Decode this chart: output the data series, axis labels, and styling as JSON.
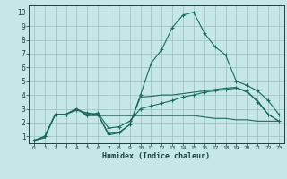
{
  "title": "",
  "xlabel": "Humidex (Indice chaleur)",
  "ylabel": "",
  "bg_color": "#c5e8e4",
  "grid_color": "#9dbfbb",
  "line_color": "#1a6b5a",
  "xlim": [
    -0.5,
    23.5
  ],
  "ylim": [
    0.5,
    10.5
  ],
  "xticks": [
    0,
    1,
    2,
    3,
    4,
    5,
    6,
    7,
    8,
    9,
    10,
    11,
    12,
    13,
    14,
    15,
    16,
    17,
    18,
    19,
    20,
    21,
    22,
    23
  ],
  "yticks": [
    1,
    2,
    3,
    4,
    5,
    6,
    7,
    8,
    9,
    10
  ],
  "line1_x": [
    0,
    1,
    2,
    3,
    4,
    5,
    6,
    7,
    8,
    9,
    10,
    11,
    12,
    13,
    14,
    15,
    16,
    17,
    18,
    19,
    20,
    21,
    22,
    23
  ],
  "line1_y": [
    0.7,
    1.0,
    2.6,
    2.6,
    2.9,
    2.7,
    2.6,
    1.2,
    1.3,
    1.85,
    4.0,
    6.3,
    7.3,
    8.9,
    9.8,
    10.0,
    8.5,
    7.5,
    6.9,
    5.0,
    4.7,
    4.3,
    3.6,
    2.6
  ],
  "line2_x": [
    0,
    1,
    2,
    3,
    4,
    5,
    6,
    7,
    8,
    9,
    10,
    11,
    12,
    13,
    14,
    15,
    16,
    17,
    18,
    19,
    20,
    21,
    22,
    23
  ],
  "line2_y": [
    0.7,
    1.0,
    2.6,
    2.6,
    3.0,
    2.5,
    2.7,
    1.6,
    1.7,
    2.1,
    3.0,
    3.2,
    3.4,
    3.6,
    3.85,
    4.0,
    4.2,
    4.3,
    4.4,
    4.5,
    4.3,
    3.5,
    2.6,
    2.1
  ],
  "line3_x": [
    0,
    1,
    2,
    3,
    4,
    5,
    6,
    7,
    8,
    9,
    10,
    11,
    12,
    13,
    14,
    15,
    16,
    17,
    18,
    19,
    20,
    21,
    22,
    23
  ],
  "line3_y": [
    0.7,
    0.9,
    2.6,
    2.6,
    3.0,
    2.5,
    2.5,
    2.5,
    2.5,
    2.5,
    2.5,
    2.5,
    2.5,
    2.5,
    2.5,
    2.5,
    2.4,
    2.3,
    2.3,
    2.2,
    2.2,
    2.1,
    2.1,
    2.1
  ],
  "line4_x": [
    0,
    1,
    2,
    3,
    4,
    5,
    6,
    7,
    8,
    9,
    10,
    11,
    12,
    13,
    14,
    15,
    16,
    17,
    18,
    19,
    20,
    21,
    22,
    23
  ],
  "line4_y": [
    0.7,
    0.9,
    2.6,
    2.6,
    3.0,
    2.6,
    2.6,
    1.1,
    1.25,
    1.85,
    3.85,
    3.9,
    4.0,
    4.0,
    4.1,
    4.2,
    4.3,
    4.4,
    4.5,
    4.55,
    4.2,
    3.6,
    2.6,
    2.1
  ]
}
